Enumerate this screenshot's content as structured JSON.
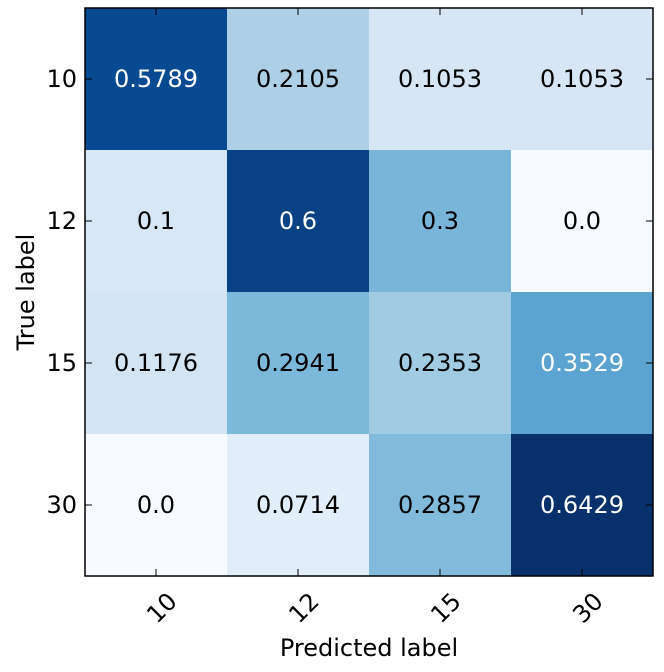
{
  "chart_data": {
    "type": "heatmap",
    "title": "",
    "xlabel": "Predicted label",
    "ylabel": "True label",
    "x_categories": [
      "10",
      "12",
      "15",
      "30"
    ],
    "y_categories": [
      "10",
      "12",
      "15",
      "30"
    ],
    "values": [
      [
        0.5789,
        0.2105,
        0.1053,
        0.1053
      ],
      [
        0.1,
        0.6,
        0.3,
        0.0
      ],
      [
        0.1176,
        0.2941,
        0.2353,
        0.3529
      ],
      [
        0.0,
        0.0714,
        0.2857,
        0.6429
      ]
    ],
    "labels": [
      [
        "0.5789",
        "0.2105",
        "0.1053",
        "0.1053"
      ],
      [
        "0.1",
        "0.6",
        "0.3",
        "0.0"
      ],
      [
        "0.1176",
        "0.2941",
        "0.2353",
        "0.3529"
      ],
      [
        "0.0",
        "0.0714",
        "0.2857",
        "0.6429"
      ]
    ],
    "colormap": "Blues",
    "value_range": [
      0.0,
      0.6429
    ],
    "text_color_light": "#ffffff",
    "text_color_dark": "#000000"
  }
}
